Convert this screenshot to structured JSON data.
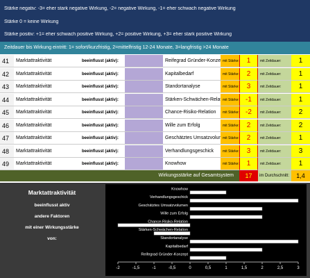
{
  "header": {
    "lines": [
      "Stärke negativ: -3= eher stark negative Wirkung, -2= negative Wirkung, -1= eher schwach negative Wirkung",
      "Stärke 0 = keine Wirkung",
      "Stärke positiv: +1= eher schwach positive Wirkung, +2= positive Wirkung, +3= eher stark positive Wirkung"
    ],
    "timeline": "Zeitdauer bis Wirkung eintritt: 1= sofort/kurzfristig, 2=mittelfristig 12-24 Monate, 3=langfristig >24 Monate"
  },
  "table": {
    "rows": [
      [
        "41",
        "Marktattraktivität",
        "beeinflusst (aktiv):",
        "Reifegrad Gründer-Konzept",
        "mit Stärke:",
        "1",
        "mit Zeitdauer:",
        "1"
      ],
      [
        "42",
        "Marktattraktivität",
        "beeinflusst (aktiv):",
        "Kapitalbedarf",
        "mit Stärke:",
        "2",
        "mit Zeitdauer:",
        "1"
      ],
      [
        "43",
        "Marktattraktivität",
        "beeinflusst (aktiv):",
        "Standortanalyse",
        "mit Stärke:",
        "3",
        "mit Zeitdauer:",
        "1"
      ],
      [
        "44",
        "Marktattraktivität",
        "beeinflusst (aktiv):",
        "Stärken-Schwächen-Relation",
        "mit Stärke:",
        "-1",
        "mit Zeitdauer:",
        "1"
      ],
      [
        "45",
        "Marktattraktivität",
        "beeinflusst (aktiv):",
        "Chance-Risiko-Relation",
        "mit Stärke:",
        "-2",
        "mit Zeitdauer:",
        "2"
      ],
      [
        "46",
        "Marktattraktivität",
        "beeinflusst (aktiv):",
        "Wille zum Erfolg",
        "mit Stärke:",
        "2",
        "mit Zeitdauer:",
        "2"
      ],
      [
        "47",
        "Marktattraktivität",
        "beeinflusst (aktiv):",
        "Geschätztes Umsatzvolumen",
        "mit Stärke:",
        "2",
        "mit Zeitdauer:",
        "1"
      ],
      [
        "48",
        "Marktattraktivität",
        "beeinflusst (aktiv):",
        "Verhandlungsgeschick",
        "mit Stärke:",
        "3",
        "mit Zeitdauer:",
        "3"
      ],
      [
        "49",
        "Marktattraktivität",
        "beeinflusst (aktiv):",
        "Knowhow",
        "mit Stärke:",
        "1",
        "mit Zeitdauer:",
        "1"
      ]
    ]
  },
  "summary": {
    "label": "Wirkungsstärke auf Gesamtsystem",
    "total": "17",
    "avg_label": "im Durchschnitt:",
    "avg": "1,4"
  },
  "panel": {
    "title": "Marktattraktivität",
    "lines": [
      "beeinflusst aktiv",
      "andere Faktoren",
      "mit einer Wirkungsstärke",
      "von:"
    ]
  },
  "chart_data": {
    "type": "bar",
    "orientation": "horizontal",
    "color": "#ffffff",
    "categories": [
      "Reifegrad Gründer-Konzept",
      "Kapitalbedarf",
      "Standortanalyse",
      "Stärken-Schwächen-Relation",
      "Chance-Risiko-Relation",
      "Wille zum Erfolg",
      "Geschätztes Umsatzvolumen",
      "Verhandlungsgeschick",
      "Knowhow"
    ],
    "values": [
      1,
      2,
      3,
      -1,
      -2,
      2,
      2,
      3,
      1
    ],
    "xlim": [
      -2,
      3
    ],
    "xticks": [
      -2,
      {
        "value": -1.5,
        "label": "-1,5"
      },
      -1,
      {
        "value": -0.5,
        "label": "-0,5"
      },
      0,
      {
        "value": 0.5,
        "label": "0,5"
      },
      1,
      {
        "value": 1.5,
        "label": "1,5"
      },
      2,
      {
        "value": 2.5,
        "label": "2,5"
      },
      3
    ]
  }
}
